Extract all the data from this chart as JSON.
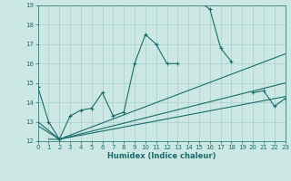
{
  "xlabel": "Humidex (Indice chaleur)",
  "xlim": [
    0,
    23
  ],
  "ylim": [
    12,
    19
  ],
  "yticks": [
    12,
    13,
    14,
    15,
    16,
    17,
    18,
    19
  ],
  "xticks": [
    0,
    1,
    2,
    3,
    4,
    5,
    6,
    7,
    8,
    9,
    10,
    11,
    12,
    13,
    14,
    15,
    16,
    17,
    18,
    19,
    20,
    21,
    22,
    23
  ],
  "background_color": "#cce8e4",
  "grid_color": "#aacfca",
  "line_color": "#1a6b6b",
  "series": [
    {
      "x": [
        0,
        1,
        2,
        3,
        4,
        5,
        6,
        7,
        8,
        9,
        10,
        11,
        12,
        13,
        14,
        15,
        16,
        17,
        18,
        19,
        20,
        21,
        22,
        23
      ],
      "y": [
        14.8,
        13.0,
        12.1,
        13.3,
        13.6,
        13.7,
        14.5,
        13.3,
        13.5,
        16.0,
        17.5,
        17.0,
        16.0,
        16.0,
        null,
        19.2,
        18.8,
        16.8,
        16.1,
        null,
        14.5,
        14.6,
        13.8,
        14.2
      ],
      "marker": true
    },
    {
      "x": [
        0,
        2,
        23
      ],
      "y": [
        13.0,
        12.1,
        16.5
      ],
      "marker": false
    },
    {
      "x": [
        0,
        2,
        23
      ],
      "y": [
        12.8,
        12.1,
        15.0
      ],
      "marker": false
    },
    {
      "x": [
        1,
        2,
        23
      ],
      "y": [
        12.1,
        12.1,
        14.3
      ],
      "marker": false
    }
  ]
}
